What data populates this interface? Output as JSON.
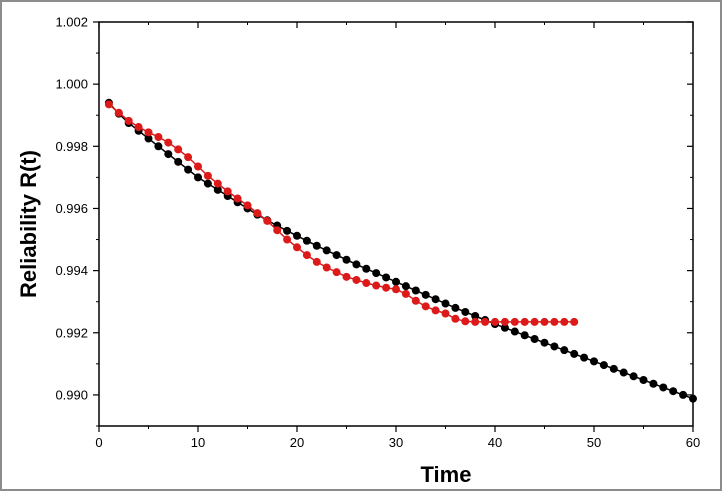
{
  "chart_data": {
    "type": "scatter",
    "title": "",
    "xlabel": "Time",
    "ylabel": "Reliability R(t)",
    "xlim": [
      0,
      60
    ],
    "ylim": [
      0.989,
      1.002
    ],
    "xticks": [
      0,
      10,
      20,
      30,
      40,
      50,
      60
    ],
    "xtick_labels": [
      "0",
      "10",
      "20",
      "30",
      "40",
      "50",
      "60"
    ],
    "yticks": [
      0.99,
      0.992,
      0.994,
      0.996,
      0.998,
      1.0,
      1.002
    ],
    "ytick_labels": [
      "0.990",
      "0.992",
      "0.994",
      "0.996",
      "0.998",
      "1.000",
      "1.002"
    ],
    "grid": false,
    "legend": "none",
    "series": [
      {
        "color": "#000000",
        "x": [
          1,
          2,
          3,
          4,
          5,
          6,
          7,
          8,
          9,
          10,
          11,
          12,
          13,
          14,
          15,
          16,
          17,
          18,
          19,
          20,
          21,
          22,
          23,
          24,
          25,
          26,
          27,
          28,
          29,
          30,
          31,
          32,
          33,
          34,
          35,
          36,
          37,
          38,
          39,
          40,
          41,
          42,
          43,
          44,
          45,
          46,
          47,
          48,
          49,
          50,
          51,
          52,
          53,
          54,
          55,
          56,
          57,
          58,
          59,
          60
        ],
        "y": [
          0.9994,
          0.99905,
          0.99875,
          0.9985,
          0.99825,
          0.998,
          0.99775,
          0.9975,
          0.99725,
          0.997,
          0.9968,
          0.9966,
          0.9964,
          0.9962,
          0.996,
          0.9958,
          0.99562,
          0.99545,
          0.99528,
          0.99512,
          0.99496,
          0.9948,
          0.99465,
          0.9945,
          0.99435,
          0.9942,
          0.99406,
          0.99392,
          0.99378,
          0.99364,
          0.9935,
          0.99336,
          0.99322,
          0.99308,
          0.99294,
          0.9928,
          0.99267,
          0.99254,
          0.99241,
          0.99228,
          0.99216,
          0.99204,
          0.99192,
          0.9918,
          0.99168,
          0.99156,
          0.99144,
          0.99132,
          0.9912,
          0.99108,
          0.99096,
          0.99084,
          0.99072,
          0.9906,
          0.99048,
          0.99036,
          0.99024,
          0.99012,
          0.99,
          0.98988
        ]
      },
      {
        "color": "#dd1a1a",
        "x": [
          1,
          2,
          3,
          4,
          5,
          6,
          7,
          8,
          9,
          10,
          11,
          12,
          13,
          14,
          15,
          16,
          17,
          18,
          19,
          20,
          21,
          22,
          23,
          24,
          25,
          26,
          27,
          28,
          29,
          30,
          31,
          32,
          33,
          34,
          35,
          36,
          37,
          38,
          39,
          40,
          41,
          42,
          43,
          44,
          45,
          46,
          47,
          48
        ],
        "y": [
          0.99935,
          0.99908,
          0.99882,
          0.99862,
          0.99845,
          0.9983,
          0.99812,
          0.9979,
          0.99765,
          0.99735,
          0.99705,
          0.9968,
          0.99655,
          0.99632,
          0.9961,
          0.99585,
          0.9956,
          0.9953,
          0.995,
          0.99475,
          0.9945,
          0.99428,
          0.9941,
          0.99395,
          0.9938,
          0.9937,
          0.9936,
          0.99352,
          0.99345,
          0.9934,
          0.99325,
          0.99303,
          0.99285,
          0.99272,
          0.99262,
          0.99245,
          0.99237,
          0.99235,
          0.99235,
          0.99235,
          0.99235,
          0.99235,
          0.99235,
          0.99235,
          0.99235,
          0.99235,
          0.99235,
          0.99235
        ]
      }
    ]
  }
}
